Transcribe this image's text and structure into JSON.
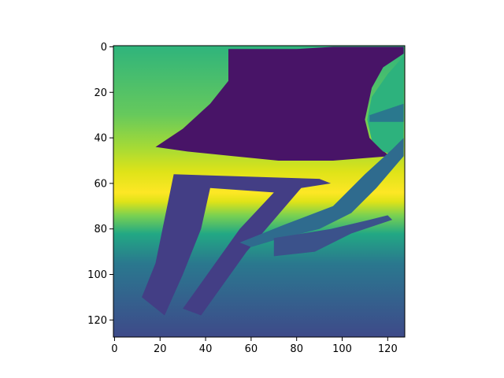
{
  "chart_data": {
    "type": "heatmap",
    "title": "",
    "xlabel": "",
    "ylabel": "",
    "image_size": [
      128,
      128
    ],
    "xlim": [
      -0.5,
      127.5
    ],
    "ylim": [
      127.5,
      -0.5
    ],
    "y_inverted": true,
    "grid": false,
    "colormap": "viridis",
    "x_ticks": [
      0,
      20,
      40,
      60,
      80,
      100,
      120
    ],
    "x_tick_labels": [
      "0",
      "20",
      "40",
      "60",
      "80",
      "100",
      "120"
    ],
    "y_ticks": [
      0,
      20,
      40,
      60,
      80,
      100,
      120
    ],
    "y_tick_labels": [
      "0",
      "20",
      "40",
      "60",
      "80",
      "100",
      "120"
    ],
    "background_gradient": [
      {
        "row": 0,
        "color": "#2fb47c"
      },
      {
        "row": 30,
        "color": "#66c95c"
      },
      {
        "row": 45,
        "color": "#a8db34"
      },
      {
        "row": 55,
        "color": "#dfe318"
      },
      {
        "row": 64,
        "color": "#fde725"
      },
      {
        "row": 68,
        "color": "#dfe318"
      },
      {
        "row": 74,
        "color": "#7ad151"
      },
      {
        "row": 82,
        "color": "#22a884"
      },
      {
        "row": 95,
        "color": "#2a788e"
      },
      {
        "row": 112,
        "color": "#355f8d"
      },
      {
        "row": 127,
        "color": "#3e4a89"
      }
    ],
    "regions": [
      {
        "name": "tabletop",
        "color": "#481467",
        "polygon": [
          [
            50,
            1
          ],
          [
            80,
            1
          ],
          [
            96,
            0
          ],
          [
            127,
            0
          ],
          [
            127,
            3
          ],
          [
            118,
            9
          ],
          [
            113,
            18
          ],
          [
            110,
            32
          ],
          [
            112,
            40
          ],
          [
            117,
            45
          ],
          [
            121,
            48
          ],
          [
            96,
            50
          ],
          [
            72,
            50
          ],
          [
            52,
            48
          ],
          [
            32,
            46
          ],
          [
            18,
            44
          ],
          [
            30,
            36
          ],
          [
            42,
            25
          ],
          [
            50,
            15
          ]
        ]
      },
      {
        "name": "right-oval",
        "color": "#2db27d",
        "polygon": [
          [
            127,
            4
          ],
          [
            120,
            12
          ],
          [
            113,
            22
          ],
          [
            111,
            32
          ],
          [
            113,
            41
          ],
          [
            118,
            46
          ],
          [
            124,
            48
          ],
          [
            127,
            44
          ]
        ]
      },
      {
        "name": "oval-stripe",
        "color": "#2a788e",
        "polygon": [
          [
            112,
            30
          ],
          [
            127,
            25
          ],
          [
            127,
            33
          ],
          [
            112,
            33
          ]
        ]
      },
      {
        "name": "table-legs",
        "color": "#433e85",
        "polygon": [
          [
            26,
            56
          ],
          [
            90,
            58
          ],
          [
            95,
            60
          ],
          [
            82,
            62
          ],
          [
            58,
            90
          ],
          [
            38,
            118
          ],
          [
            30,
            115
          ],
          [
            55,
            80
          ],
          [
            70,
            64
          ],
          [
            42,
            62
          ],
          [
            38,
            80
          ],
          [
            30,
            100
          ],
          [
            22,
            118
          ],
          [
            12,
            110
          ],
          [
            18,
            95
          ]
        ]
      },
      {
        "name": "leg-shadow",
        "color": "#2f6b8e",
        "polygon": [
          [
            96,
            70
          ],
          [
            110,
            56
          ],
          [
            122,
            45
          ],
          [
            127,
            40
          ],
          [
            127,
            48
          ],
          [
            115,
            62
          ],
          [
            104,
            73
          ],
          [
            90,
            80
          ],
          [
            70,
            85
          ],
          [
            60,
            88
          ],
          [
            55,
            86
          ],
          [
            75,
            78
          ]
        ]
      },
      {
        "name": "rung-right",
        "color": "#3b528b",
        "polygon": [
          [
            70,
            84
          ],
          [
            95,
            80
          ],
          [
            112,
            76
          ],
          [
            120,
            74
          ],
          [
            122,
            76
          ],
          [
            104,
            82
          ],
          [
            88,
            90
          ],
          [
            70,
            92
          ]
        ]
      }
    ]
  }
}
